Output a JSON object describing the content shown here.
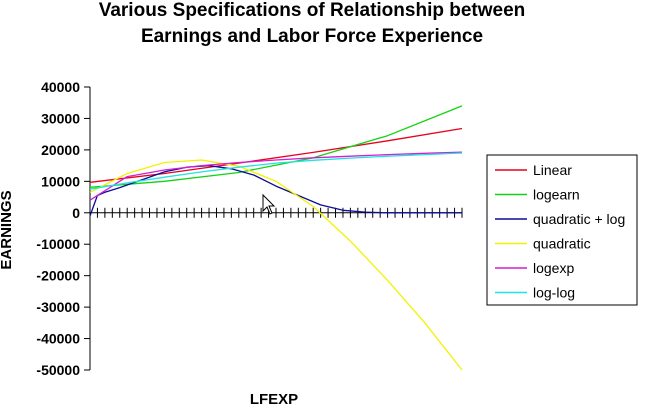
{
  "chart_data": {
    "type": "line",
    "title_lines": [
      "Various Specifications of Relationship between",
      "Earnings and Labor Force Experience"
    ],
    "xlabel": "LFEXP",
    "ylabel": "EARNINGS",
    "ylim": [
      -50000,
      40000
    ],
    "yticks": [
      40000,
      30000,
      20000,
      10000,
      0,
      -10000,
      -20000,
      -30000,
      -40000,
      -50000
    ],
    "xlim": [
      1,
      51
    ],
    "legend_position": "right",
    "series": [
      {
        "name": "Linear",
        "color": "#e8001c",
        "x": [
          1,
          11,
          21,
          31,
          41,
          51
        ],
        "y": [
          9700,
          12500,
          15800,
          19200,
          22900,
          26800
        ]
      },
      {
        "name": "logearn",
        "color": "#14d314",
        "x": [
          1,
          11,
          21,
          31,
          41,
          51
        ],
        "y": [
          8100,
          10000,
          12800,
          17500,
          24500,
          34000
        ]
      },
      {
        "name": "quadratic + log",
        "color": "#0c0c96",
        "x": [
          1,
          2,
          3,
          5,
          8,
          11,
          14,
          17,
          20,
          23,
          26,
          29,
          32,
          35,
          38,
          41,
          44,
          47,
          51
        ],
        "y": [
          -1000,
          5500,
          6500,
          8000,
          10500,
          13000,
          14500,
          15000,
          14000,
          12000,
          8500,
          5500,
          2500,
          800,
          200,
          0,
          0,
          0,
          0
        ]
      },
      {
        "name": "quadratic",
        "color": "#f2f200",
        "x": [
          1,
          6,
          11,
          16,
          21,
          26,
          31,
          36,
          41,
          46,
          51
        ],
        "y": [
          6500,
          12500,
          16000,
          16800,
          14800,
          10000,
          2000,
          -9000,
          -21500,
          -35000,
          -50000
        ]
      },
      {
        "name": "logexp",
        "color": "#d21fd2",
        "x": [
          1,
          6,
          11,
          16,
          21,
          26,
          31,
          36,
          41,
          46,
          51
        ],
        "y": [
          4000,
          11500,
          13600,
          15000,
          16000,
          16800,
          17500,
          18000,
          18500,
          18900,
          19300
        ]
      },
      {
        "name": "log-log",
        "color": "#20e3e3",
        "x": [
          1,
          6,
          11,
          16,
          21,
          26,
          31,
          36,
          41,
          46,
          51
        ],
        "y": [
          7500,
          9500,
          11300,
          13000,
          14500,
          15800,
          16700,
          17400,
          18000,
          18500,
          19000
        ]
      }
    ]
  }
}
